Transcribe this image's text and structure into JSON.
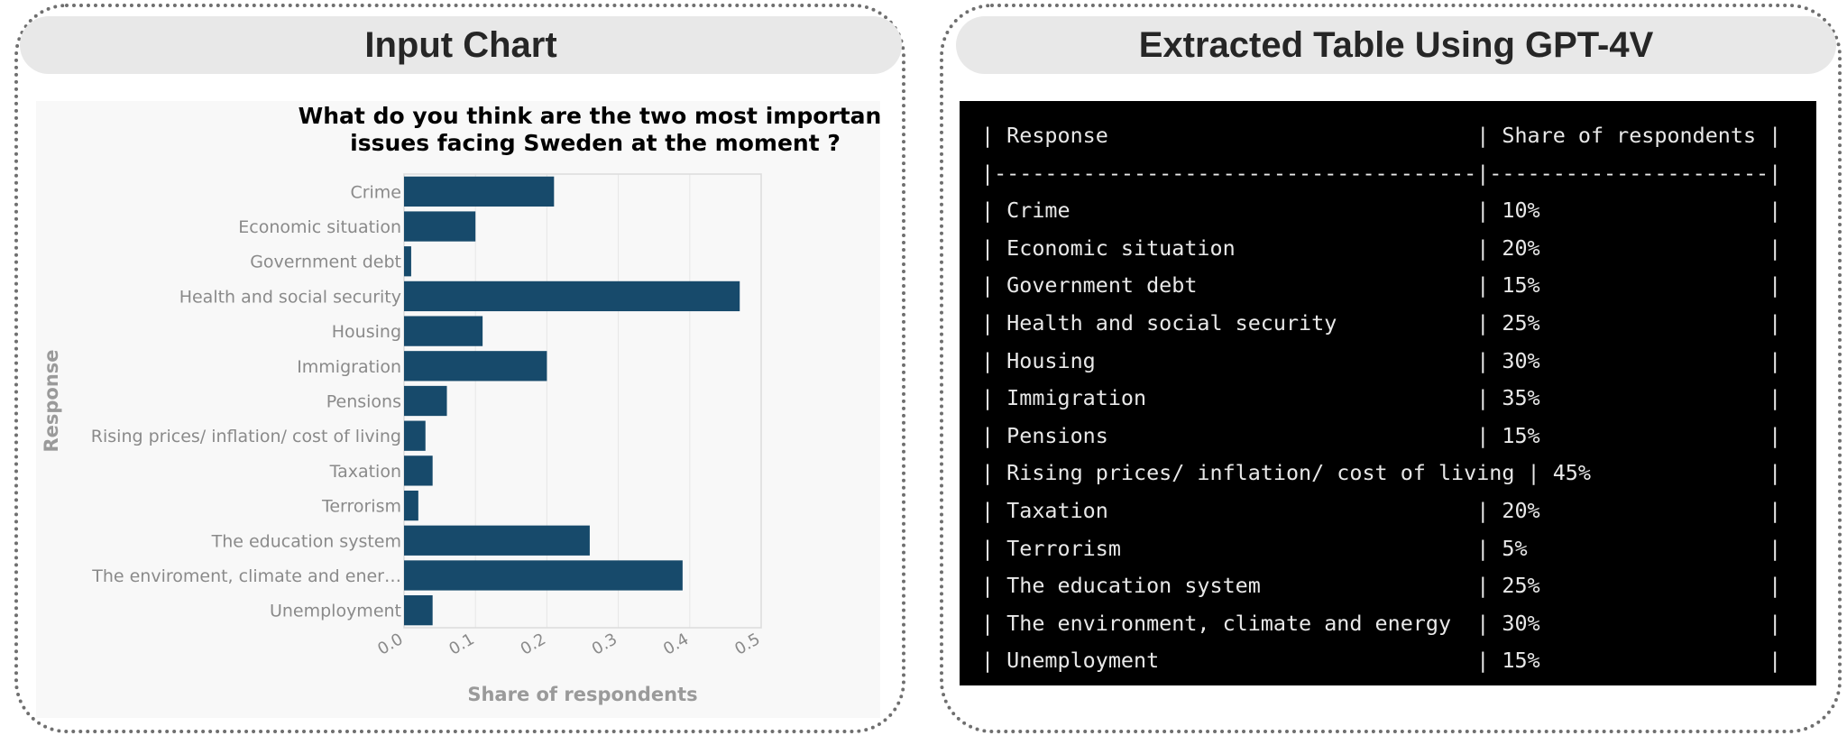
{
  "left_panel": {
    "header": "Input Chart"
  },
  "right_panel": {
    "header": "Extracted Table Using GPT-4V"
  },
  "colors": {
    "bar": "#174a6b",
    "grid": "#e6e6e6",
    "label": "#8a8a8a"
  },
  "chart_data": {
    "type": "bar",
    "orientation": "horizontal",
    "title": "What do you think are the two most important issues facing Sweden at the moment ?",
    "title_lines": [
      "What do you think are the two most important",
      "issues facing Sweden at the moment ?"
    ],
    "xlabel": "Share of respondents",
    "ylabel": "Response",
    "categories": [
      "Crime",
      "Economic situation",
      "Government debt",
      "Health and social security",
      "Housing",
      "Immigration",
      "Pensions",
      "Rising prices/ inflation/ cost of living",
      "Taxation",
      "Terrorism",
      "The education system",
      "The enviroment, climate and ener…",
      "Unemployment"
    ],
    "values": [
      0.21,
      0.1,
      0.01,
      0.47,
      0.11,
      0.2,
      0.06,
      0.03,
      0.04,
      0.02,
      0.26,
      0.39,
      0.04
    ],
    "xlim": [
      0,
      0.5
    ],
    "xticks": [
      0.0,
      0.1,
      0.2,
      0.3,
      0.4,
      0.5
    ],
    "xtick_labels": [
      "0.0",
      "0.1",
      "0.2",
      "0.3",
      "0.4",
      "0.5"
    ],
    "grid": true
  },
  "table": {
    "lines": [
      "| Response                             | Share of respondents |",
      "|--------------------------------------|----------------------|",
      "| Crime                                | 10%                  |",
      "| Economic situation                   | 20%                  |",
      "| Government debt                      | 15%                  |",
      "| Health and social security           | 25%                  |",
      "| Housing                              | 30%                  |",
      "| Immigration                          | 35%                  |",
      "| Pensions                             | 15%                  |",
      "| Rising prices/ inflation/ cost of living | 45%              |",
      "| Taxation                             | 20%                  |",
      "| Terrorism                            | 5%                   |",
      "| The education system                 | 25%                  |",
      "| The environment, climate and energy  | 30%                  |",
      "| Unemployment                         | 15%                  |"
    ]
  }
}
